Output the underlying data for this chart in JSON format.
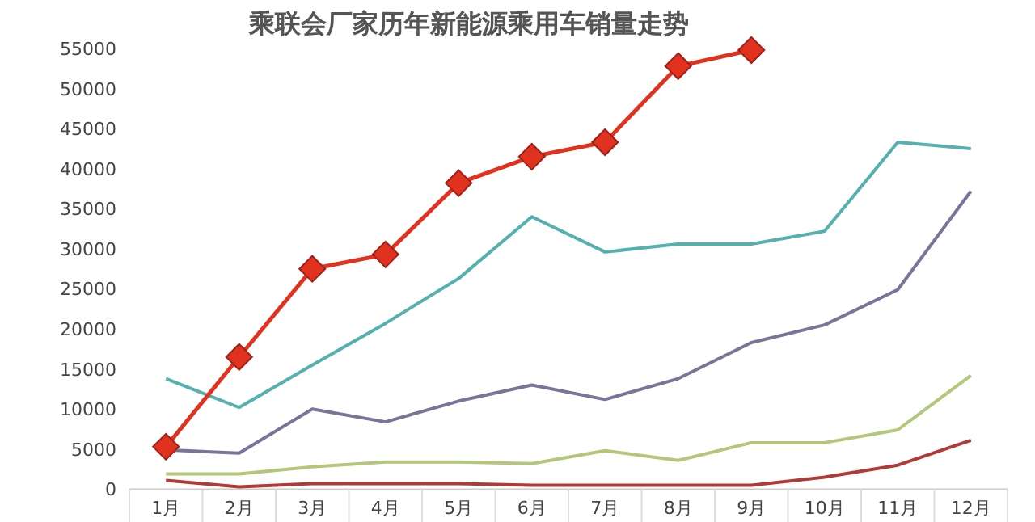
{
  "chart_data": {
    "type": "line",
    "title": "乘联会厂家历年新能源乘用车销量走势",
    "categories": [
      "1月",
      "2月",
      "3月",
      "4月",
      "5月",
      "6月",
      "7月",
      "8月",
      "9月",
      "10月",
      "11月",
      "12月"
    ],
    "ylim": [
      0,
      55000
    ],
    "yticks": [
      0,
      5000,
      10000,
      15000,
      20000,
      25000,
      30000,
      35000,
      40000,
      45000,
      50000,
      55000
    ],
    "series": [
      {
        "color": "#b03a35",
        "marker": "none",
        "values": [
          1100,
          300,
          700,
          700,
          700,
          500,
          500,
          500,
          500,
          1500,
          3000,
          6100
        ]
      },
      {
        "color": "#b3c77a",
        "marker": "none",
        "values": [
          1900,
          1900,
          2800,
          3400,
          3400,
          3200,
          4800,
          3600,
          5800,
          5800,
          7400,
          14200
        ]
      },
      {
        "color": "#77759a",
        "marker": "none",
        "values": [
          4900,
          4500,
          10000,
          8400,
          11000,
          13000,
          11200,
          13800,
          18300,
          20500,
          24900,
          37200
        ]
      },
      {
        "color": "#55b0b0",
        "marker": "none",
        "values": [
          13800,
          10200,
          15500,
          20700,
          26300,
          34000,
          29600,
          30600,
          30600,
          32200,
          43300,
          42500
        ]
      },
      {
        "color": "#e0321f",
        "marker": "diamond",
        "values": [
          5300,
          16500,
          27500,
          29300,
          38200,
          41500,
          43300,
          52800,
          54800,
          null,
          null,
          null
        ]
      }
    ]
  }
}
